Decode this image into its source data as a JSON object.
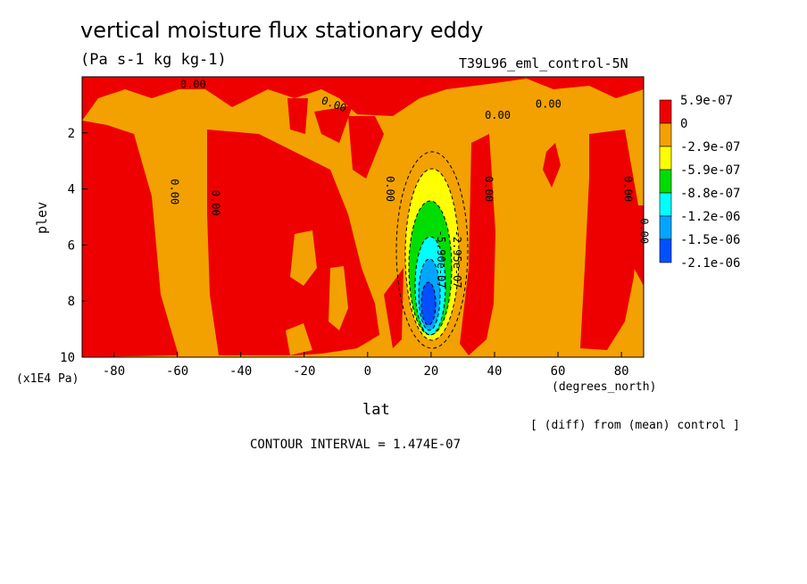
{
  "title": "vertical moisture flux stationary eddy",
  "subtitle": "(Pa s-1 kg kg-1)",
  "run_label": "T39L96_eml_control-5N",
  "diff_note": "[ (diff) from (mean) control ]",
  "contour_interval": "CONTOUR INTERVAL = 1.474E-07",
  "colors": {
    "red": "#ee0000",
    "orange": "#f2a100",
    "yellow": "#ffff00",
    "green": "#00dd00",
    "cyan": "#00ffff",
    "sky": "#00a5ff",
    "blue": "#0050ff"
  },
  "chart_data": {
    "type": "heatmap",
    "title": "vertical moisture flux stationary eddy",
    "xlabel": "lat",
    "xunit": "(degrees_north)",
    "ylabel": "plev",
    "yunit": "(x1E4 Pa)",
    "xlim": [
      -90,
      87
    ],
    "ylim": [
      10,
      0
    ],
    "x_ticks": [
      "-80",
      "-60",
      "-40",
      "-20",
      "0",
      "20",
      "40",
      "60",
      "80"
    ],
    "x_tick_values": [
      -80,
      -60,
      -40,
      -20,
      0,
      20,
      40,
      60,
      80
    ],
    "y_ticks": [
      "2",
      "4",
      "6",
      "8",
      "10"
    ],
    "y_tick_values": [
      2,
      4,
      6,
      8,
      10
    ],
    "legend": {
      "placement": "right",
      "labels": [
        "5.9e-07",
        "0",
        "-2.9e-07",
        "-5.9e-07",
        "-8.8e-07",
        "-1.2e-06",
        "-1.5e-06",
        "-2.1e-06"
      ],
      "colors": [
        "#ee0000",
        "#f2a100",
        "#ffff00",
        "#00dd00",
        "#00ffff",
        "#00a5ff",
        "#0050ff"
      ]
    },
    "contour_labels": [
      {
        "text": "0.00",
        "lat": -55,
        "plev": 0.4,
        "angle": 0
      },
      {
        "text": "0.00",
        "lat": -11,
        "plev": 1.1,
        "angle": 20
      },
      {
        "text": "0.00",
        "lat": 41,
        "plev": 1.5,
        "angle": 0
      },
      {
        "text": "0.00",
        "lat": 57,
        "plev": 1.1,
        "angle": 0
      },
      {
        "text": "0.00",
        "lat": -62,
        "plev": 4.1,
        "angle": 90
      },
      {
        "text": "0.00",
        "lat": -49,
        "plev": 4.5,
        "angle": 90
      },
      {
        "text": "0.00",
        "lat": 6,
        "plev": 4.0,
        "angle": 90
      },
      {
        "text": "0.00",
        "lat": 37,
        "plev": 4.0,
        "angle": 90
      },
      {
        "text": "0.00",
        "lat": 81,
        "plev": 4.0,
        "angle": 90
      },
      {
        "text": "0.00",
        "lat": 86,
        "plev": 5.5,
        "angle": 90
      },
      {
        "text": "-2.95e-07",
        "lat": 27,
        "plev": 6.5,
        "angle": 90
      },
      {
        "text": "-5.90e-07",
        "lat": 22,
        "plev": 6.5,
        "angle": 90
      }
    ]
  }
}
